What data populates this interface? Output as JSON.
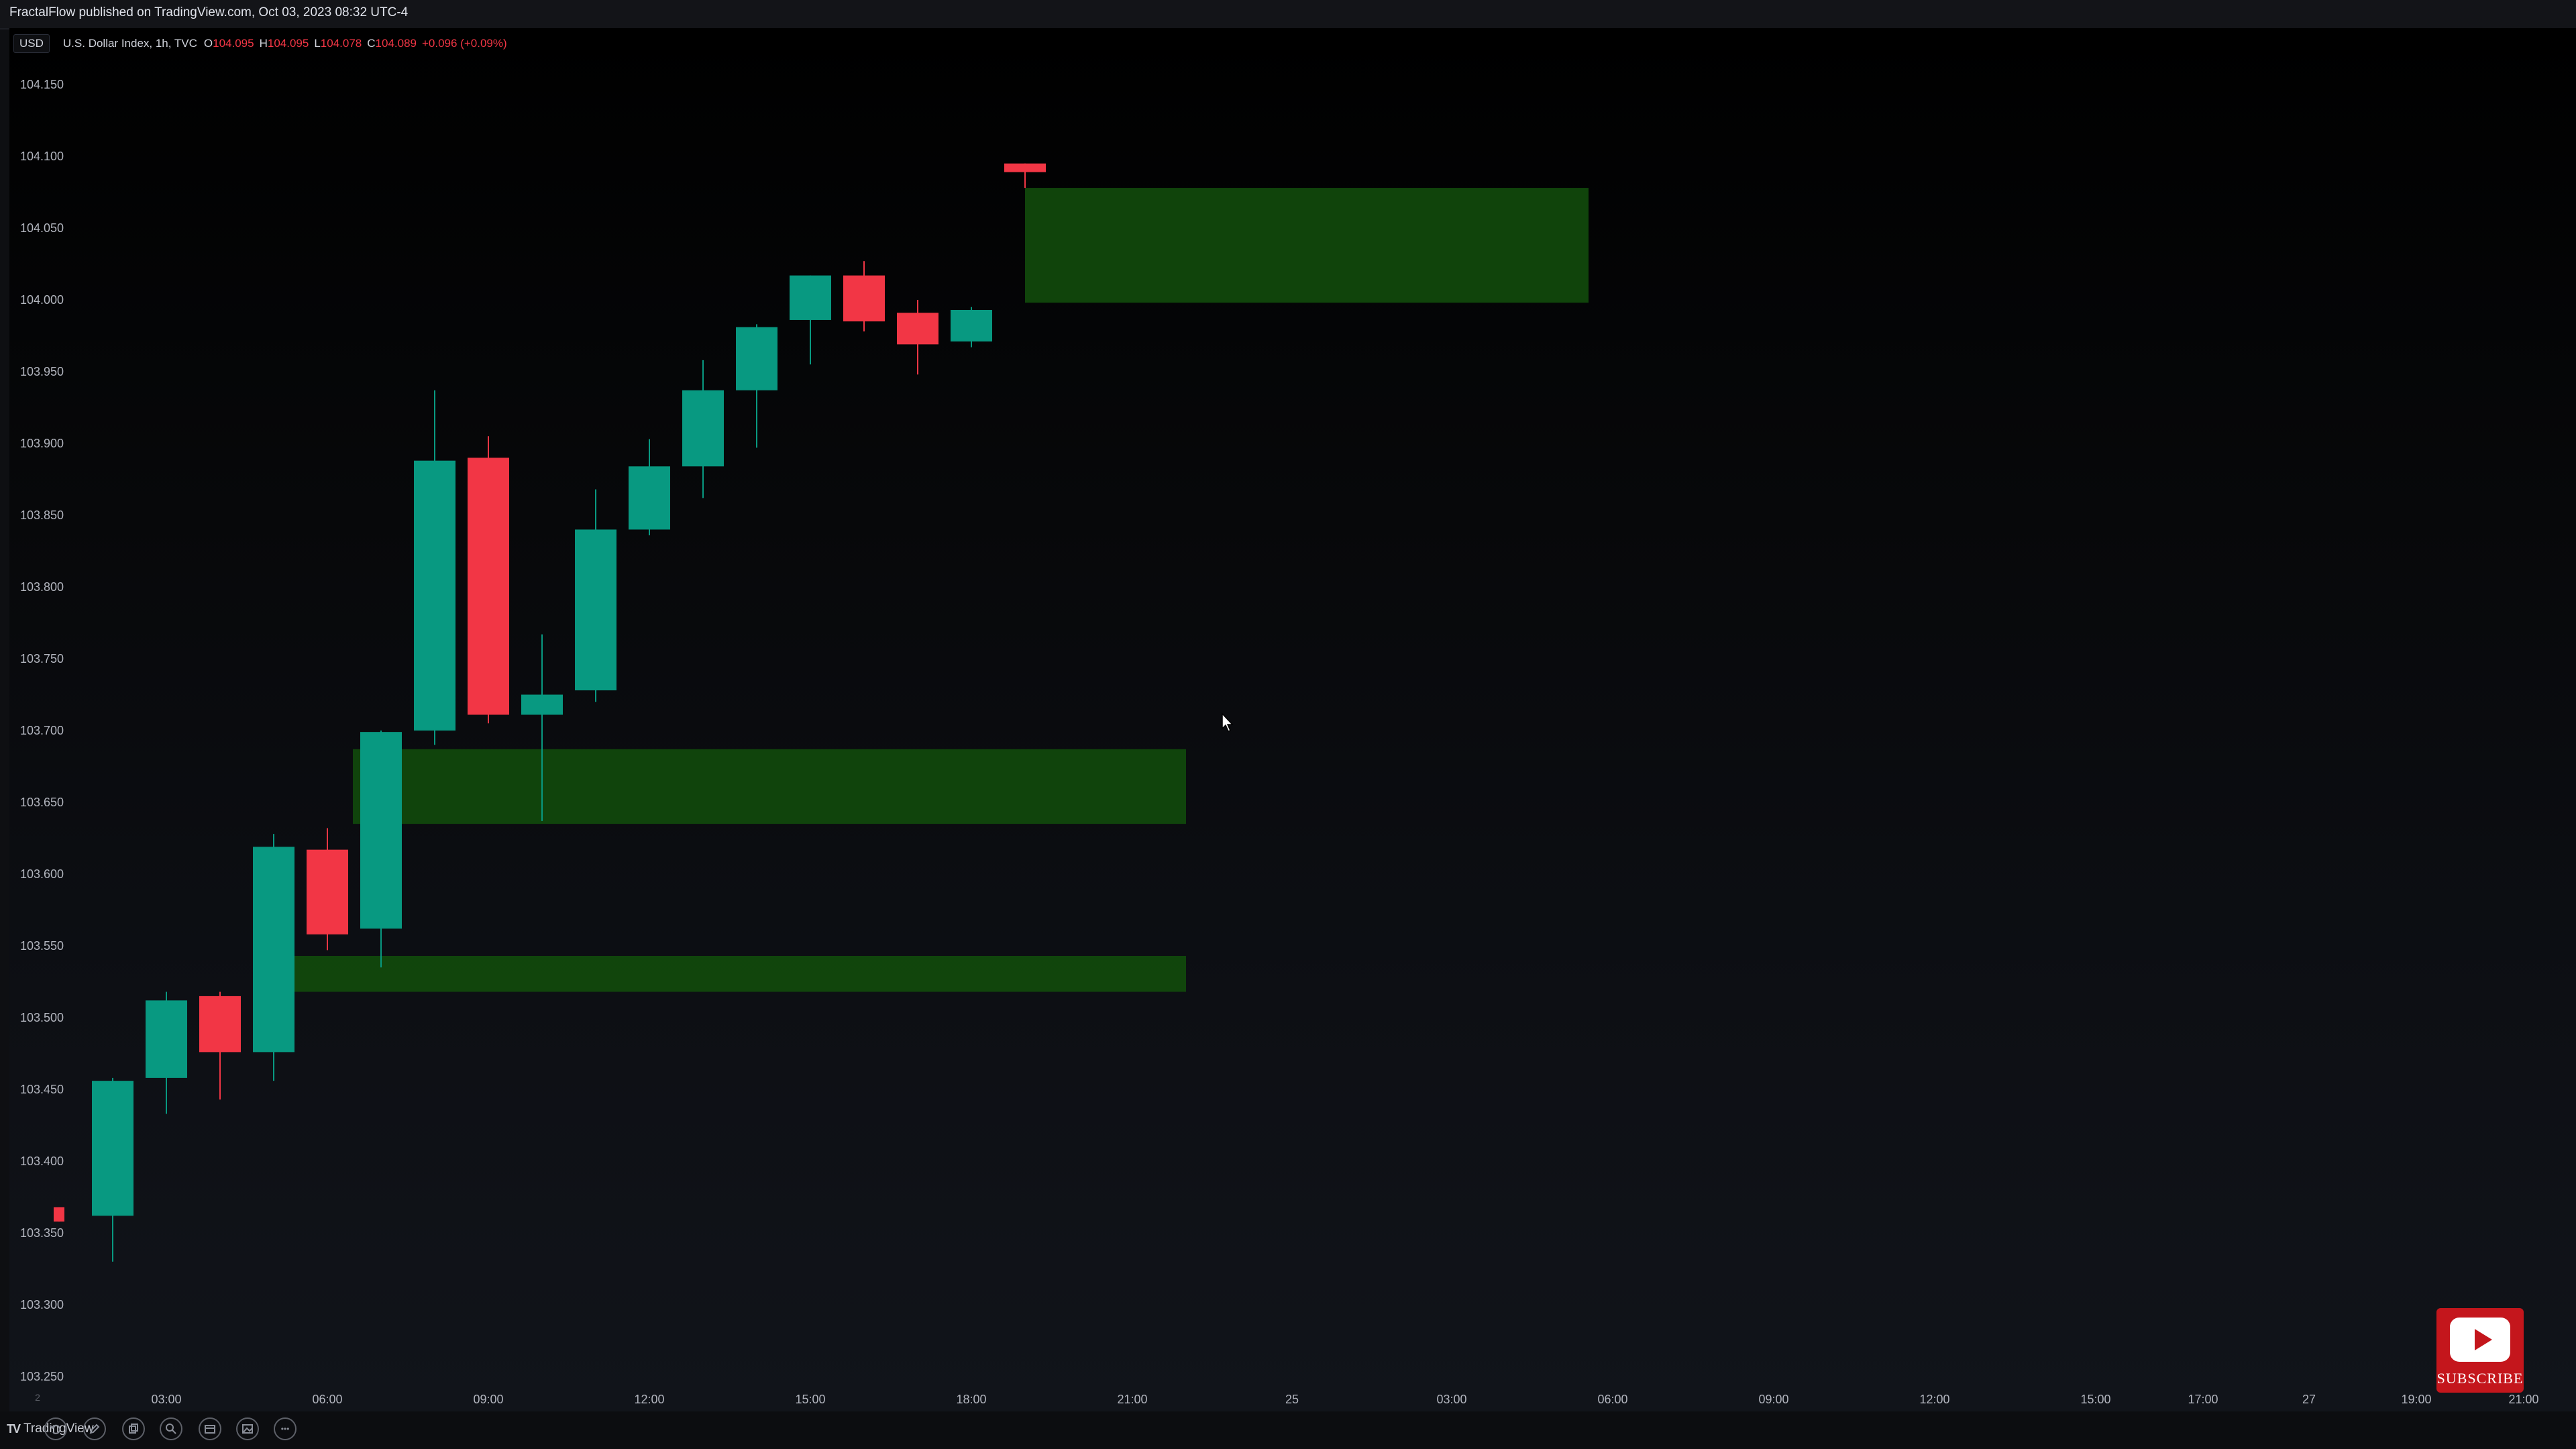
{
  "header": {
    "published_text": "FractalFlow published on TradingView.com, Oct 03, 2023 08:32 UTC-4"
  },
  "legend": {
    "currency_badge": "USD",
    "symbol": "U.S. Dollar Index, 1h, TVC",
    "open_label": "O",
    "open_value": "104.095",
    "high_label": "H",
    "high_value": "104.095",
    "low_label": "L",
    "low_value": "104.078",
    "close_label": "C",
    "close_value": "104.089",
    "change": "+0.096 (+0.09%)"
  },
  "colors": {
    "up": "#089981",
    "down": "#f23645",
    "zone": "#114a0c",
    "axis_text": "#b2b5be"
  },
  "chart_data": {
    "type": "candlestick",
    "y_range": [
      103.25,
      104.17
    ],
    "y_ticks": [
      "104.150",
      "104.100",
      "104.050",
      "104.000",
      "103.950",
      "103.900",
      "103.850",
      "103.800",
      "103.750",
      "103.700",
      "103.650",
      "103.600",
      "103.550",
      "103.500",
      "103.450",
      "103.400",
      "103.350",
      "103.300",
      "103.250"
    ],
    "x_ticks": [
      "03:00",
      "06:00",
      "09:00",
      "12:00",
      "15:00",
      "18:00",
      "21:00",
      "25",
      "03:00",
      "06:00",
      "09:00",
      "12:00",
      "15:00",
      "17:00",
      "27",
      "19:00",
      "21:00"
    ],
    "candles": [
      {
        "time": "00:00",
        "open": 103.368,
        "high": 103.368,
        "low": 103.358,
        "close": 103.358
      },
      {
        "time": "01:00",
        "open": 103.362,
        "high": 103.458,
        "low": 103.33,
        "close": 103.456
      },
      {
        "time": "02:00",
        "open": 103.458,
        "high": 103.518,
        "low": 103.433,
        "close": 103.512
      },
      {
        "time": "03:00",
        "open": 103.515,
        "high": 103.518,
        "low": 103.443,
        "close": 103.476
      },
      {
        "time": "04:00",
        "open": 103.476,
        "high": 103.628,
        "low": 103.456,
        "close": 103.619
      },
      {
        "time": "05:00",
        "open": 103.617,
        "high": 103.632,
        "low": 103.547,
        "close": 103.558
      },
      {
        "time": "06:00",
        "open": 103.562,
        "high": 103.7,
        "low": 103.535,
        "close": 103.699
      },
      {
        "time": "07:00",
        "open": 103.7,
        "high": 103.937,
        "low": 103.69,
        "close": 103.888
      },
      {
        "time": "08:00",
        "open": 103.89,
        "high": 103.905,
        "low": 103.705,
        "close": 103.711
      },
      {
        "time": "09:00",
        "open": 103.711,
        "high": 103.767,
        "low": 103.637,
        "close": 103.725
      },
      {
        "time": "10:00",
        "open": 103.728,
        "high": 103.868,
        "low": 103.72,
        "close": 103.84
      },
      {
        "time": "11:00",
        "open": 103.84,
        "high": 103.903,
        "low": 103.836,
        "close": 103.884
      },
      {
        "time": "12:00",
        "open": 103.884,
        "high": 103.958,
        "low": 103.862,
        "close": 103.937
      },
      {
        "time": "13:00",
        "open": 103.937,
        "high": 103.983,
        "low": 103.897,
        "close": 103.981
      },
      {
        "time": "14:00",
        "open": 103.986,
        "high": 104.017,
        "low": 103.955,
        "close": 104.017
      },
      {
        "time": "15:00",
        "open": 104.017,
        "high": 104.027,
        "low": 103.978,
        "close": 103.985
      },
      {
        "time": "16:00",
        "open": 103.991,
        "high": 104.0,
        "low": 103.948,
        "close": 103.969
      },
      {
        "time": "17:00",
        "open": 103.971,
        "high": 103.995,
        "low": 103.967,
        "close": 103.993
      },
      {
        "time": "18:00",
        "open": 104.095,
        "high": 104.095,
        "low": 104.078,
        "close": 104.089
      }
    ],
    "zones": [
      {
        "from": "18:00",
        "to": "Oct 24 04:30",
        "bottom": 103.998,
        "top": 104.078
      },
      {
        "from": "06:00",
        "to": "21:00",
        "bottom": 103.635,
        "top": 103.687
      },
      {
        "from": "04:00",
        "to": "21:00",
        "bottom": 103.518,
        "top": 103.543
      }
    ]
  },
  "toolbar": {
    "logo_text": "TradingView",
    "button_icons": [
      "undo-icon",
      "pencil-icon",
      "copy-icon",
      "zoom-icon",
      "calendar-icon",
      "image-icon",
      "more-icon"
    ],
    "more_glyph": "•••",
    "left_scale_marker": "2"
  },
  "youtube_badge": {
    "text": "SUBSCRIBE"
  }
}
